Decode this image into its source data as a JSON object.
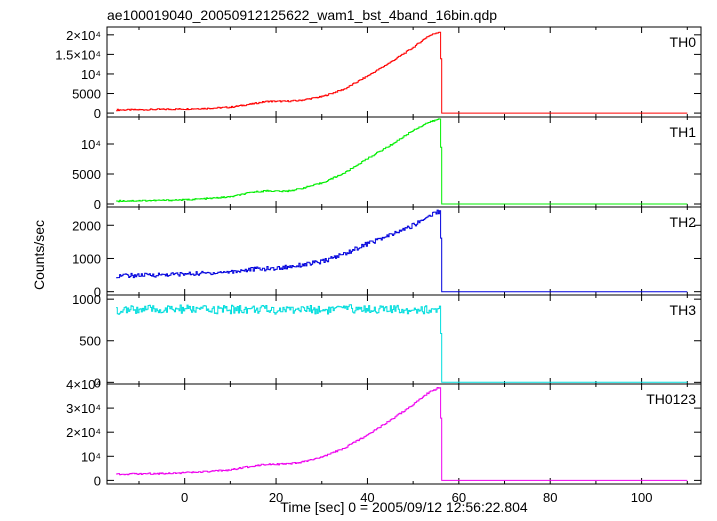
{
  "title": "ae100019040_20050912125622_wam1_bst_4band_16bin.qdp",
  "chart_data": {
    "type": "line",
    "title": "ae100019040_20050912125622_wam1_bst_4band_16bin.qdp",
    "xlabel": "Time [sec] 0 = 2005/09/12 12:56:22.804",
    "ylabel": "Counts/sec",
    "xlim": [
      -17,
      113
    ],
    "x_ticks": [
      "0",
      "20",
      "40",
      "60",
      "80",
      "100"
    ],
    "x_tick_values": [
      0,
      20,
      40,
      60,
      80,
      100
    ],
    "grid": false,
    "panels": [
      {
        "name": "TH0",
        "color": "#ff0000",
        "ylim": [
          -1000,
          22000
        ],
        "y_ticks": [
          {
            "value": 20000,
            "label": "2×10⁴"
          },
          {
            "value": 15000,
            "label": "1.5×10⁴"
          },
          {
            "value": 10000,
            "label": "10⁴"
          },
          {
            "value": 5000,
            "label": "5000"
          },
          {
            "value": 0,
            "label": "0"
          }
        ],
        "x": [
          -15,
          -10,
          -5,
          0,
          5,
          10,
          15,
          18,
          22,
          25,
          30,
          35,
          40,
          45,
          50,
          53,
          55,
          55.9,
          56.2,
          60,
          80,
          100,
          110
        ],
        "values": [
          800,
          850,
          950,
          1050,
          1200,
          1500,
          2400,
          3000,
          3000,
          3200,
          4200,
          6200,
          9500,
          13000,
          16800,
          19500,
          20500,
          20800,
          0,
          0,
          0,
          0,
          0
        ]
      },
      {
        "name": "TH1",
        "color": "#00ee00",
        "ylim": [
          -500,
          14500
        ],
        "y_ticks": [
          {
            "value": 10000,
            "label": "10⁴"
          },
          {
            "value": 5000,
            "label": "5000"
          },
          {
            "value": 0,
            "label": "0"
          }
        ],
        "x": [
          -15,
          -10,
          -5,
          0,
          5,
          10,
          15,
          18,
          22,
          25,
          30,
          35,
          40,
          45,
          50,
          53,
          55,
          55.9,
          56.2,
          60,
          80,
          100,
          110
        ],
        "values": [
          500,
          550,
          600,
          700,
          900,
          1200,
          2000,
          2200,
          2100,
          2500,
          3500,
          5200,
          7600,
          9800,
          12300,
          13500,
          14000,
          14200,
          0,
          0,
          0,
          0,
          0
        ]
      },
      {
        "name": "TH2",
        "color": "#0000dd",
        "ylim": [
          -100,
          2550
        ],
        "y_ticks": [
          {
            "value": 2000,
            "label": "2000"
          },
          {
            "value": 1000,
            "label": "1000"
          },
          {
            "value": 0,
            "label": "0"
          }
        ],
        "x": [
          -15,
          -10,
          -5,
          0,
          5,
          10,
          15,
          20,
          25,
          30,
          35,
          40,
          45,
          50,
          53,
          55,
          55.9,
          56.2,
          60,
          80,
          100,
          110
        ],
        "values": [
          480,
          490,
          510,
          530,
          560,
          600,
          680,
          700,
          800,
          900,
          1150,
          1450,
          1700,
          2000,
          2250,
          2400,
          2420,
          0,
          0,
          0,
          0,
          0
        ]
      },
      {
        "name": "TH3",
        "color": "#00dddd",
        "ylim": [
          -20,
          1050
        ],
        "y_ticks": [
          {
            "value": 1000,
            "label": "1000"
          },
          {
            "value": 500,
            "label": "500"
          },
          {
            "value": 0,
            "label": "0"
          }
        ],
        "x": [
          -15,
          -10,
          -5,
          0,
          5,
          10,
          15,
          20,
          25,
          30,
          35,
          40,
          45,
          50,
          55,
          55.9,
          56.2,
          60,
          80,
          100,
          110
        ],
        "values": [
          860,
          880,
          870,
          880,
          870,
          875,
          880,
          870,
          880,
          870,
          880,
          885,
          870,
          880,
          870,
          880,
          0,
          0,
          0,
          0,
          0
        ]
      },
      {
        "name": "TH0123",
        "color": "#ee00ee",
        "ylim": [
          -1500,
          40000
        ],
        "y_ticks": [
          {
            "value": 40000,
            "label": "4×10⁴"
          },
          {
            "value": 30000,
            "label": "3×10⁴"
          },
          {
            "value": 20000,
            "label": "2×10⁴"
          },
          {
            "value": 10000,
            "label": "10⁴"
          },
          {
            "value": 0,
            "label": "0"
          }
        ],
        "x": [
          -15,
          -10,
          -5,
          0,
          5,
          10,
          15,
          18,
          22,
          25,
          30,
          35,
          40,
          45,
          50,
          53,
          55,
          55.9,
          56.2,
          60,
          80,
          100,
          110
        ],
        "values": [
          2600,
          2700,
          2900,
          3200,
          3600,
          4400,
          6000,
          6800,
          6700,
          7300,
          9600,
          13500,
          19000,
          25000,
          31500,
          36000,
          38000,
          38800,
          0,
          0,
          0,
          0,
          0
        ]
      }
    ]
  }
}
